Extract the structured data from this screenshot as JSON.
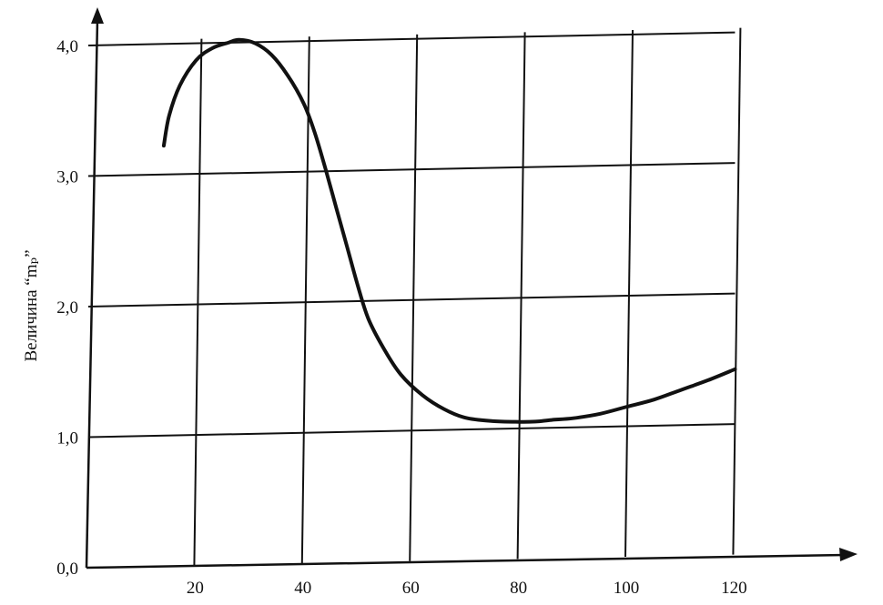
{
  "chart_data": {
    "type": "line",
    "title": "",
    "xlabel": "",
    "ylabel": "Величина “mₚ”",
    "xlim": [
      0,
      120
    ],
    "ylim": [
      0,
      4
    ],
    "x_ticks": [
      "20",
      "40",
      "60",
      "80",
      "100",
      "120"
    ],
    "y_ticks": [
      "0,0",
      "1,0",
      "2,0",
      "3,0",
      "4,0"
    ],
    "grid": true,
    "series": [
      {
        "x": [
          14,
          15,
          17,
          20,
          23,
          26,
          28,
          31,
          34,
          37,
          40,
          42,
          44,
          46,
          48,
          50,
          52,
          55,
          58,
          62,
          66,
          70,
          75,
          80,
          83,
          86,
          90,
          95,
          100,
          105,
          110,
          115,
          120
        ],
        "y": [
          3.22,
          3.45,
          3.68,
          3.87,
          3.96,
          4.0,
          4.02,
          3.99,
          3.9,
          3.74,
          3.52,
          3.3,
          3.02,
          2.72,
          2.42,
          2.12,
          1.86,
          1.62,
          1.43,
          1.27,
          1.16,
          1.09,
          1.06,
          1.05,
          1.05,
          1.06,
          1.07,
          1.1,
          1.15,
          1.2,
          1.27,
          1.34,
          1.42
        ]
      }
    ]
  },
  "colors": {
    "ink": "#111111",
    "background": "#ffffff"
  }
}
